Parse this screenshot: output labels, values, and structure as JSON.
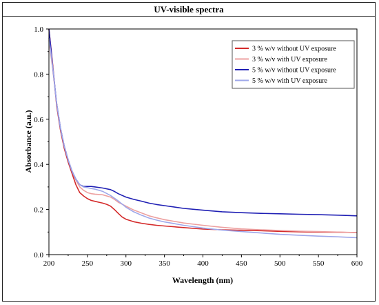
{
  "figure": {
    "title": "UV-visible spectra"
  },
  "chart_data": {
    "type": "line",
    "title": "",
    "xlabel": "Wavelength (nm)",
    "ylabel": "Absorbance (a.u.)",
    "xlim": [
      200,
      600
    ],
    "ylim": [
      0.0,
      1.0
    ],
    "xticks": [
      200,
      250,
      300,
      350,
      400,
      450,
      500,
      550,
      600
    ],
    "yticks": [
      0.0,
      0.2,
      0.4,
      0.6,
      0.8,
      1.0
    ],
    "grid": false,
    "legend_position": "top-right",
    "series": [
      {
        "name": "3 % w/v without UV exposure",
        "color": "#d42a2a",
        "x": [
          200,
          205,
          210,
          215,
          220,
          225,
          230,
          235,
          240,
          245,
          250,
          255,
          260,
          265,
          270,
          275,
          280,
          285,
          290,
          295,
          300,
          310,
          320,
          330,
          340,
          350,
          375,
          400,
          425,
          450,
          475,
          500,
          525,
          550,
          575,
          600
        ],
        "y": [
          1.0,
          0.84,
          0.66,
          0.55,
          0.47,
          0.41,
          0.36,
          0.31,
          0.275,
          0.26,
          0.248,
          0.24,
          0.236,
          0.232,
          0.228,
          0.223,
          0.215,
          0.2,
          0.183,
          0.167,
          0.157,
          0.146,
          0.139,
          0.134,
          0.13,
          0.127,
          0.12,
          0.113,
          0.11,
          0.108,
          0.106,
          0.103,
          0.101,
          0.1,
          0.099,
          0.098
        ]
      },
      {
        "name": "3 % w/v with UV exposure",
        "color": "#eda0a0",
        "x": [
          200,
          205,
          210,
          215,
          220,
          225,
          230,
          235,
          240,
          245,
          250,
          255,
          260,
          270,
          280,
          285,
          290,
          300,
          310,
          320,
          330,
          340,
          350,
          375,
          400,
          425,
          450,
          475,
          500,
          525,
          550,
          575,
          600
        ],
        "y": [
          0.95,
          0.82,
          0.67,
          0.56,
          0.48,
          0.42,
          0.37,
          0.33,
          0.3,
          0.285,
          0.275,
          0.27,
          0.268,
          0.265,
          0.255,
          0.245,
          0.232,
          0.215,
          0.198,
          0.185,
          0.172,
          0.163,
          0.155,
          0.14,
          0.13,
          0.121,
          0.114,
          0.11,
          0.107,
          0.104,
          0.102,
          0.1,
          0.098
        ]
      },
      {
        "name": "5 % w/v without UV exposure",
        "color": "#1f1fb4",
        "x": [
          200,
          205,
          210,
          215,
          220,
          225,
          230,
          235,
          240,
          245,
          250,
          255,
          260,
          270,
          280,
          285,
          290,
          300,
          310,
          320,
          330,
          340,
          350,
          375,
          400,
          425,
          450,
          475,
          500,
          525,
          550,
          575,
          600
        ],
        "y": [
          1.0,
          0.83,
          0.67,
          0.56,
          0.48,
          0.42,
          0.37,
          0.335,
          0.31,
          0.302,
          0.302,
          0.302,
          0.3,
          0.295,
          0.288,
          0.28,
          0.27,
          0.255,
          0.245,
          0.237,
          0.228,
          0.222,
          0.217,
          0.205,
          0.197,
          0.19,
          0.186,
          0.183,
          0.181,
          0.179,
          0.177,
          0.175,
          0.172
        ]
      },
      {
        "name": "5 % w/v with UV exposure",
        "color": "#9ea7ea",
        "x": [
          200,
          205,
          210,
          215,
          220,
          225,
          230,
          235,
          240,
          245,
          250,
          255,
          260,
          270,
          280,
          290,
          300,
          310,
          320,
          330,
          340,
          350,
          375,
          400,
          425,
          450,
          475,
          500,
          525,
          550,
          575,
          600
        ],
        "y": [
          0.96,
          0.83,
          0.67,
          0.56,
          0.48,
          0.42,
          0.37,
          0.335,
          0.31,
          0.3,
          0.297,
          0.293,
          0.29,
          0.28,
          0.262,
          0.238,
          0.21,
          0.19,
          0.175,
          0.162,
          0.153,
          0.145,
          0.13,
          0.118,
          0.109,
          0.102,
          0.096,
          0.09,
          0.086,
          0.082,
          0.079,
          0.075
        ]
      }
    ]
  }
}
